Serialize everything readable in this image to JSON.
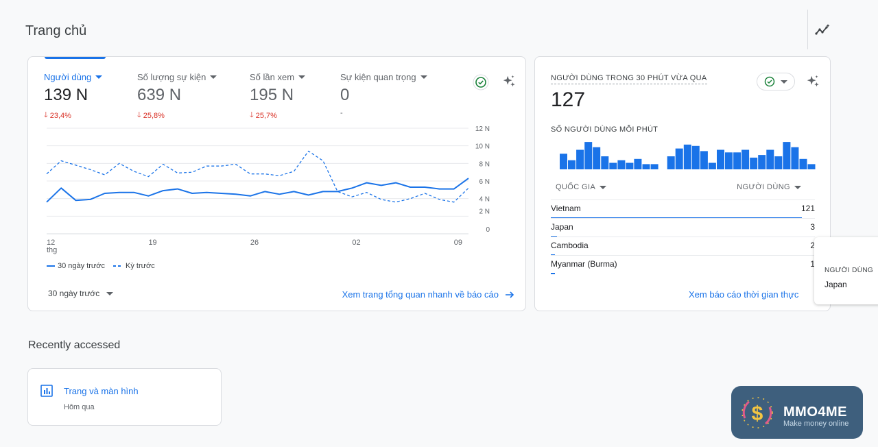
{
  "page": {
    "title": "Trang chủ"
  },
  "overview": {
    "metrics": [
      {
        "label": "Người dùng",
        "value": "139 N",
        "change": "23,4%",
        "active": true
      },
      {
        "label": "Số lượng sự kiện",
        "value": "639 N",
        "change": "25,8%",
        "active": false
      },
      {
        "label": "Số lần xem",
        "value": "195 N",
        "change": "25,7%",
        "active": false
      },
      {
        "label": "Sự kiện quan trọng",
        "value": "0",
        "change": "-",
        "active": false
      }
    ],
    "legend": {
      "current": "30 ngày trước",
      "previous": "Kỳ trước"
    },
    "date_range": "30 ngày trước",
    "link": "Xem trang tổng quan nhanh về báo cáo"
  },
  "chart_data": {
    "type": "line",
    "x_tick_labels": [
      "12\nthg",
      "19",
      "26",
      "02",
      "09"
    ],
    "y_tick_labels": [
      "12 N",
      "10 N",
      "8 N",
      "6 N",
      "4 N",
      "2 N",
      "0"
    ],
    "ylim": [
      0,
      12
    ],
    "grid": true,
    "legend_position": "bottom-left",
    "series": [
      {
        "name": "30 ngày trước",
        "style": "solid",
        "color": "#1a73e8",
        "values": [
          3.6,
          5.2,
          3.8,
          3.9,
          4.6,
          4.7,
          4.7,
          4.3,
          4.9,
          5.1,
          4.6,
          4.7,
          4.6,
          4.5,
          4.3,
          4.8,
          4.5,
          4.8,
          4.4,
          4.8,
          4.8,
          5.2,
          5.8,
          5.5,
          5.8,
          5.3,
          5.3,
          5.1,
          5.1,
          6.3
        ]
      },
      {
        "name": "Kỳ trước",
        "style": "dashed",
        "color": "#1a73e8",
        "values": [
          6.8,
          8.3,
          7.8,
          7.3,
          6.7,
          8.0,
          7.1,
          6.5,
          7.9,
          6.9,
          7.0,
          7.7,
          7.7,
          7.9,
          6.8,
          6.8,
          6.6,
          7.1,
          9.4,
          8.3,
          4.8,
          4.2,
          4.7,
          3.9,
          3.6,
          4.0,
          4.6,
          3.9,
          3.6,
          5.2
        ]
      }
    ]
  },
  "realtime": {
    "title": "NGƯỜI DÙNG TRONG 30 PHÚT VỪA QUA",
    "value": "127",
    "sub_title": "SỐ NGƯỜI DÙNG MỖI PHÚT",
    "bars": [
      6,
      3.5,
      7.5,
      10.5,
      8.5,
      5,
      2.5,
      3.5,
      2.5,
      4,
      2,
      2,
      0,
      5,
      8,
      9.5,
      9,
      7,
      2.5,
      7.5,
      6.5,
      6.5,
      7.5,
      4.5,
      5.5,
      7.5,
      5,
      10.5,
      8.5,
      4,
      2
    ],
    "col_country": "QUỐC GIA",
    "col_users": "NGƯỜI DÙNG",
    "rows": [
      {
        "country": "Vietnam",
        "users": "121",
        "share": 0.95
      },
      {
        "country": "Japan",
        "users": "3",
        "share": 0.024
      },
      {
        "country": "Cambodia",
        "users": "2",
        "share": 0.016
      },
      {
        "country": "Myanmar (Burma)",
        "users": "1",
        "share": 0.008
      }
    ],
    "link": "Xem báo cáo thời gian thực"
  },
  "tooltip": {
    "header": "NGƯỜI DÙNG",
    "value": "Japan"
  },
  "recent": {
    "heading": "Recently accessed",
    "item_title": "Trang và màn hình",
    "item_sub": "Hôm qua"
  },
  "brand": {
    "name": "MMO4ME",
    "tagline": "Make money online"
  },
  "colors": {
    "accent": "#1a73e8",
    "negative": "#d93025",
    "success": "#188038",
    "brand_bg": "#3e5f7d"
  }
}
